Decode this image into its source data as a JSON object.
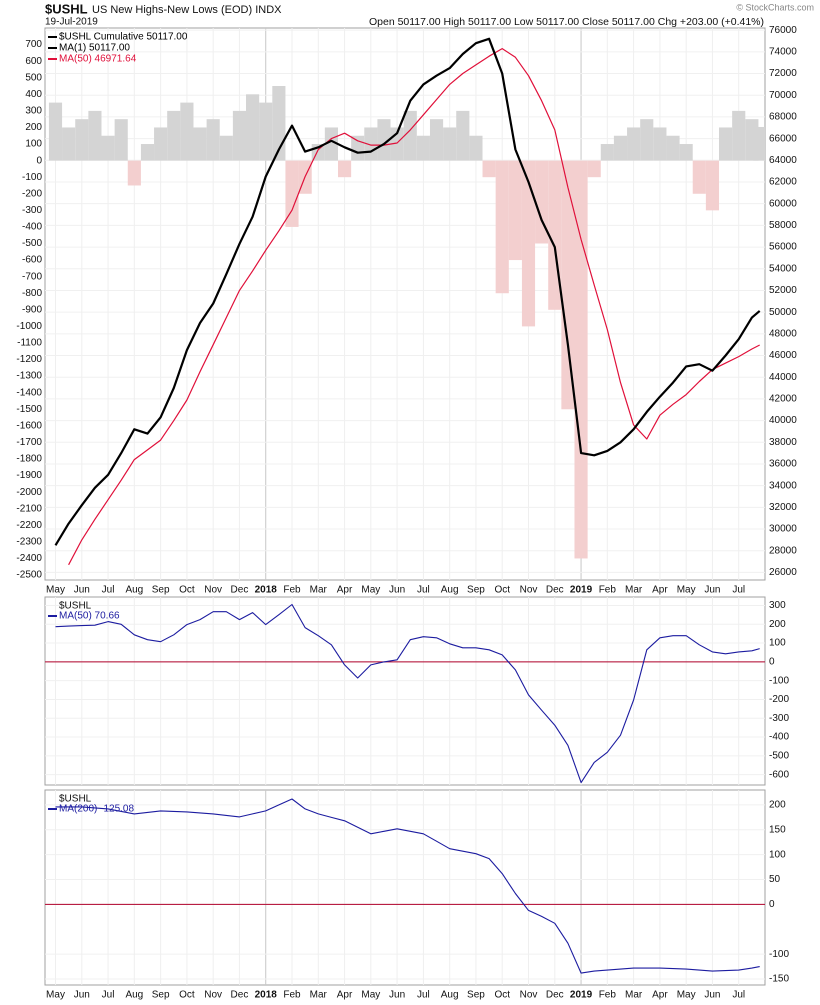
{
  "header": {
    "title": "$USHL",
    "subtitle": "US New Highs-New Lows (EOD) INDX",
    "date": "19-Jul-2019",
    "quote": "Open 50117.00  High 50117.00  Low 50117.00  Close 50117.00  Chg +203.00 (+0.41%)",
    "watermark": "© StockCharts.com"
  },
  "chart_data": [
    {
      "type": "line",
      "x": [
        0,
        0.5,
        1,
        1.5,
        2,
        2.5,
        3,
        3.5,
        4,
        4.5,
        5,
        5.5,
        6,
        6.5,
        7,
        7.5,
        8,
        8.5,
        9,
        9.5,
        10,
        10.5,
        11,
        11.5,
        12,
        12.5,
        13,
        13.5,
        14,
        14.5,
        15,
        15.5,
        16,
        16.5,
        17,
        17.5,
        18,
        18.5,
        19,
        19.5,
        20,
        20.5,
        21,
        21.5,
        22,
        22.5,
        23,
        23.5,
        24,
        24.5,
        25,
        25.5,
        26,
        26.5,
        26.8
      ],
      "xlim": [
        -0.4,
        27
      ],
      "xticks": [
        {
          "value": 0,
          "label": "May"
        },
        {
          "value": 1,
          "label": "Jun"
        },
        {
          "value": 2,
          "label": "Jul"
        },
        {
          "value": 3,
          "label": "Aug"
        },
        {
          "value": 4,
          "label": "Sep"
        },
        {
          "value": 5,
          "label": "Oct"
        },
        {
          "value": 6,
          "label": "Nov"
        },
        {
          "value": 7,
          "label": "Dec"
        },
        {
          "value": 8,
          "label": "2018"
        },
        {
          "value": 9,
          "label": "Feb"
        },
        {
          "value": 10,
          "label": "Mar"
        },
        {
          "value": 11,
          "label": "Apr"
        },
        {
          "value": 12,
          "label": "May"
        },
        {
          "value": 13,
          "label": "Jun"
        },
        {
          "value": 14,
          "label": "Jul"
        },
        {
          "value": 15,
          "label": "Aug"
        },
        {
          "value": 16,
          "label": "Sep"
        },
        {
          "value": 17,
          "label": "Oct"
        },
        {
          "value": 18,
          "label": "Nov"
        },
        {
          "value": 19,
          "label": "Dec"
        },
        {
          "value": 20,
          "label": "2019"
        },
        {
          "value": 21,
          "label": "Feb"
        },
        {
          "value": 22,
          "label": "Mar"
        },
        {
          "value": 23,
          "label": "Apr"
        },
        {
          "value": 24,
          "label": "May"
        },
        {
          "value": 25,
          "label": "Jun"
        },
        {
          "value": 26,
          "label": "Jul"
        }
      ],
      "ylim": [
        -2530,
        800
      ],
      "yticks": [
        700,
        600,
        500,
        400,
        300,
        200,
        100,
        0,
        -100,
        -200,
        -300,
        -400,
        -500,
        -600,
        -700,
        -800,
        -900,
        -1000,
        -1100,
        -1200,
        -1300,
        -1400,
        -1500,
        -1600,
        -1700,
        -1800,
        -1900,
        -2000,
        -2100,
        -2200,
        -2300,
        -2400,
        -2500
      ],
      "y2lim": [
        25300,
        76200
      ],
      "y2ticks": [
        76000,
        74000,
        72000,
        70000,
        68000,
        66000,
        64000,
        62000,
        60000,
        58000,
        56000,
        54000,
        52000,
        50000,
        48000,
        46000,
        44000,
        42000,
        40000,
        38000,
        36000,
        34000,
        32000,
        30000,
        28000,
        26000
      ],
      "histogram": {
        "up_color": "#d4d4d4",
        "down_color": "#f3cfcf",
        "values": [
          350,
          200,
          250,
          300,
          150,
          250,
          -150,
          100,
          200,
          300,
          350,
          200,
          250,
          150,
          300,
          400,
          350,
          450,
          -400,
          -200,
          100,
          200,
          -100,
          150,
          200,
          250,
          200,
          300,
          150,
          250,
          200,
          300,
          150,
          -100,
          -800,
          -600,
          -1000,
          -500,
          -900,
          -1500,
          -2400,
          -100,
          100,
          150,
          200,
          250,
          200,
          150,
          100,
          -200,
          -300,
          200,
          300,
          250,
          203
        ]
      },
      "series": [
        {
          "name": "$USHL Cumulative 50117.00",
          "color": "#000000",
          "axis": "y2",
          "width": 2.2,
          "values": [
            28500,
            30500,
            32200,
            33800,
            35000,
            37000,
            39200,
            38800,
            40300,
            43000,
            46500,
            49000,
            50800,
            53500,
            56300,
            58800,
            62500,
            65000,
            67200,
            64800,
            65200,
            65800,
            65200,
            64700,
            64800,
            65500,
            66500,
            69500,
            71000,
            71800,
            72500,
            73800,
            74800,
            75200,
            72000,
            65000,
            62000,
            58500,
            56000,
            47000,
            37000,
            36800,
            37200,
            38000,
            39200,
            40800,
            42200,
            43500,
            45000,
            45200,
            44600,
            46000,
            47500,
            49500,
            50117
          ]
        },
        {
          "name": "MA(50) 46971.64",
          "color": "#e0103a",
          "axis": "y2",
          "width": 1.2,
          "values": [
            null,
            26700,
            29000,
            30900,
            32700,
            34500,
            36400,
            37300,
            38200,
            40000,
            41900,
            44500,
            47000,
            49500,
            52000,
            53800,
            55700,
            57500,
            59400,
            62500,
            65000,
            66000,
            66500,
            65800,
            65400,
            65400,
            65600,
            66800,
            68200,
            69600,
            71000,
            72000,
            72800,
            73600,
            74300,
            73500,
            71800,
            69500,
            66800,
            61500,
            56700,
            52500,
            48400,
            43500,
            39600,
            38300,
            40500,
            41500,
            42400,
            43600,
            44700,
            45300,
            45900,
            46600,
            46971.64
          ]
        }
      ],
      "extra_legend": {
        "name": "MA(1) 50117.00",
        "color": "#000000"
      }
    },
    {
      "type": "line",
      "label": "$USHL",
      "x": [
        0,
        0.5,
        1,
        1.5,
        2,
        2.5,
        3,
        3.5,
        4,
        4.5,
        5,
        5.5,
        6,
        6.5,
        7,
        7.5,
        8,
        8.5,
        9,
        9.5,
        10,
        10.5,
        11,
        11.5,
        12,
        12.5,
        13,
        13.5,
        14,
        14.5,
        15,
        15.5,
        16,
        16.5,
        17,
        17.5,
        18,
        18.5,
        19,
        19.5,
        20,
        20.5,
        21,
        21.5,
        22,
        22.5,
        23,
        23.5,
        24,
        24.5,
        25,
        25.5,
        26,
        26.5,
        26.8
      ],
      "xlim": [
        -0.4,
        27
      ],
      "xticks": [
        0,
        1,
        2,
        3,
        4,
        5,
        6,
        7,
        8,
        9,
        10,
        11,
        12,
        13,
        14,
        15,
        16,
        17,
        18,
        19,
        20,
        21,
        22,
        23,
        24,
        25,
        26
      ],
      "ylim": [
        -655,
        345
      ],
      "yticks": [
        300,
        200,
        100,
        0,
        -100,
        -200,
        -300,
        -400,
        -500,
        -600
      ],
      "hline": {
        "value": 0,
        "color": "#b0002a"
      },
      "series": [
        {
          "name": "MA(50) 70.66",
          "color": "#1c1ca0",
          "width": 1.1,
          "values": [
            187,
            190,
            193,
            195,
            214,
            200,
            144,
            118,
            107,
            144,
            198,
            225,
            267,
            267,
            225,
            262,
            198,
            251,
            305,
            182,
            139,
            91,
            -16,
            -86,
            -16,
            0,
            11,
            118,
            134,
            128,
            96,
            75,
            75,
            64,
            37,
            -43,
            -176,
            -257,
            -337,
            -444,
            -642,
            -535,
            -481,
            -390,
            -203,
            64,
            128,
            139,
            139,
            91,
            53,
            43,
            53,
            59,
            70.66
          ]
        }
      ]
    },
    {
      "type": "line",
      "label": "$USHL",
      "x": [
        0,
        0.5,
        1,
        1.5,
        2,
        2.5,
        3,
        3.5,
        4,
        4.5,
        5,
        5.5,
        6,
        6.5,
        7,
        7.5,
        8,
        8.5,
        9,
        9.5,
        10,
        10.5,
        11,
        11.5,
        12,
        12.5,
        13,
        13.5,
        14,
        14.5,
        15,
        15.5,
        16,
        16.5,
        17,
        17.5,
        18,
        18.5,
        19,
        19.5,
        20,
        20.5,
        21,
        21.5,
        22,
        22.5,
        23,
        23.5,
        24,
        24.5,
        25,
        25.5,
        26,
        26.5,
        26.8
      ],
      "xlim": [
        -0.4,
        27
      ],
      "xticks": [
        {
          "value": 0,
          "label": "May"
        },
        {
          "value": 1,
          "label": "Jun"
        },
        {
          "value": 2,
          "label": "Jul"
        },
        {
          "value": 3,
          "label": "Aug"
        },
        {
          "value": 4,
          "label": "Sep"
        },
        {
          "value": 5,
          "label": "Oct"
        },
        {
          "value": 6,
          "label": "Nov"
        },
        {
          "value": 7,
          "label": "Dec"
        },
        {
          "value": 8,
          "label": "2018"
        },
        {
          "value": 9,
          "label": "Feb"
        },
        {
          "value": 10,
          "label": "Mar"
        },
        {
          "value": 11,
          "label": "Apr"
        },
        {
          "value": 12,
          "label": "May"
        },
        {
          "value": 13,
          "label": "Jun"
        },
        {
          "value": 14,
          "label": "Jul"
        },
        {
          "value": 15,
          "label": "Aug"
        },
        {
          "value": 16,
          "label": "Sep"
        },
        {
          "value": 17,
          "label": "Oct"
        },
        {
          "value": 18,
          "label": "Nov"
        },
        {
          "value": 19,
          "label": "Dec"
        },
        {
          "value": 20,
          "label": "2019"
        },
        {
          "value": 21,
          "label": "Feb"
        },
        {
          "value": 22,
          "label": "Mar"
        },
        {
          "value": 23,
          "label": "Apr"
        },
        {
          "value": 24,
          "label": "May"
        },
        {
          "value": 25,
          "label": "Jun"
        },
        {
          "value": 26,
          "label": "Jul"
        }
      ],
      "ylim": [
        -162,
        230
      ],
      "yticks": [
        200,
        150,
        100,
        50,
        0,
        -100,
        -150
      ],
      "hline": {
        "value": 0,
        "color": "#b0002a"
      },
      "series": [
        {
          "name": "MA(200) -125.08",
          "color": "#1c1ca0",
          "width": 1.1,
          "values": [
            196,
            196,
            196,
            194,
            192,
            187,
            182,
            185,
            188,
            187,
            186,
            184,
            182,
            179,
            176,
            182,
            188,
            200,
            212,
            192,
            182,
            175,
            168,
            155,
            142,
            147,
            152,
            147,
            142,
            127,
            112,
            107,
            102,
            92,
            62,
            22,
            -12,
            -24,
            -38,
            -78,
            -138,
            -134,
            -132,
            -130,
            -128,
            -128,
            -128,
            -129,
            -130,
            -132,
            -134,
            -133,
            -132,
            -128,
            -125.08
          ]
        }
      ]
    }
  ]
}
